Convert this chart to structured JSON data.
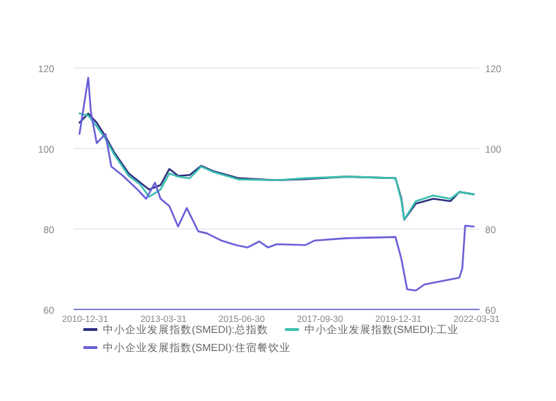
{
  "chart_data": {
    "type": "line",
    "xlim": [
      "2010-09",
      "2022-05"
    ],
    "xticks": [
      {
        "value": "2010-12-31",
        "label": "2010-12-31"
      },
      {
        "value": "2013-03-31",
        "label": "2013-03-31"
      },
      {
        "value": "2015-06-30",
        "label": "2015-06-30"
      },
      {
        "value": "2017-09-30",
        "label": "2017-09-30"
      },
      {
        "value": "2019-12-31",
        "label": "2019-12-31"
      },
      {
        "value": "2022-03-31",
        "label": "2022-03-31"
      }
    ],
    "ylim": [
      60,
      120
    ],
    "yticks": [
      60,
      80,
      100,
      120
    ],
    "y2lim": [
      60,
      120
    ],
    "y2ticks": [
      60,
      80,
      100,
      120
    ],
    "grid": "y",
    "legend": "bottom",
    "series": [
      {
        "name": "中小企业发展指数(SMEDI):总指数",
        "color": "#2b2f7e",
        "x": [
          "2010-11",
          "2011-02",
          "2011-05",
          "2011-08",
          "2011-11",
          "2012-04",
          "2012-08",
          "2012-11",
          "2013-03",
          "2013-06",
          "2013-09",
          "2014-01",
          "2014-05",
          "2014-09",
          "2015-06",
          "2016-07",
          "2017-05",
          "2018-07",
          "2019-12",
          "2020-02",
          "2020-03",
          "2020-07",
          "2021-01",
          "2021-07",
          "2021-10",
          "2022-03"
        ],
        "values": [
          106.4,
          108.7,
          106.4,
          103,
          99,
          93.8,
          91.5,
          89.8,
          90.9,
          94.9,
          93.2,
          93.4,
          95.7,
          94.4,
          92.6,
          92.1,
          92.4,
          93,
          92.6,
          87.5,
          82.3,
          86.3,
          87.5,
          86.9,
          89.2,
          88.6
        ]
      },
      {
        "name": "中小企业发展指数(SMEDI):工业",
        "color": "#3bbfae",
        "x": [
          "2010-11",
          "2011-02",
          "2011-05",
          "2011-08",
          "2011-11",
          "2012-04",
          "2012-08",
          "2012-11",
          "2013-03",
          "2013-06",
          "2013-09",
          "2014-01",
          "2014-05",
          "2014-09",
          "2015-06",
          "2016-07",
          "2017-05",
          "2018-07",
          "2019-12",
          "2020-02",
          "2020-03",
          "2020-07",
          "2021-01",
          "2021-07",
          "2021-10",
          "2022-03"
        ],
        "values": [
          108.7,
          108.2,
          105.5,
          102.4,
          98.5,
          93.2,
          91,
          88,
          89.8,
          93.8,
          93,
          92.6,
          95.5,
          94.2,
          92.3,
          92.1,
          92.6,
          93,
          92.6,
          87,
          82.3,
          86.9,
          88.3,
          87.5,
          89.2,
          88.6
        ]
      },
      {
        "name": "中小企业发展指数(SMEDI):住宿餐饮业",
        "color": "#6a5fd8",
        "x": [
          "2010-11",
          "2011-02",
          "2011-03",
          "2011-05",
          "2011-08",
          "2011-10",
          "2012-02",
          "2012-07",
          "2012-10",
          "2013-01",
          "2013-03",
          "2013-06",
          "2013-09",
          "2013-12",
          "2014-04",
          "2014-07",
          "2014-12",
          "2015-05",
          "2015-09",
          "2016-01",
          "2016-04",
          "2016-07",
          "2017-05",
          "2017-08",
          "2018-07",
          "2019-12",
          "2020-02",
          "2020-04",
          "2020-07",
          "2020-10",
          "2021-10",
          "2021-11",
          "2021-12",
          "2022-03"
        ],
        "values": [
          103.6,
          117.6,
          109,
          101.3,
          103.6,
          95.5,
          93.2,
          89.8,
          87.5,
          91.5,
          87.5,
          85.7,
          80.6,
          85.2,
          79.4,
          78.9,
          77.1,
          76,
          75.4,
          76.9,
          75.4,
          76.2,
          76,
          77.1,
          77.7,
          78,
          72.5,
          65,
          64.7,
          66.2,
          67.9,
          70.2,
          80.8,
          80.6
        ]
      }
    ]
  }
}
